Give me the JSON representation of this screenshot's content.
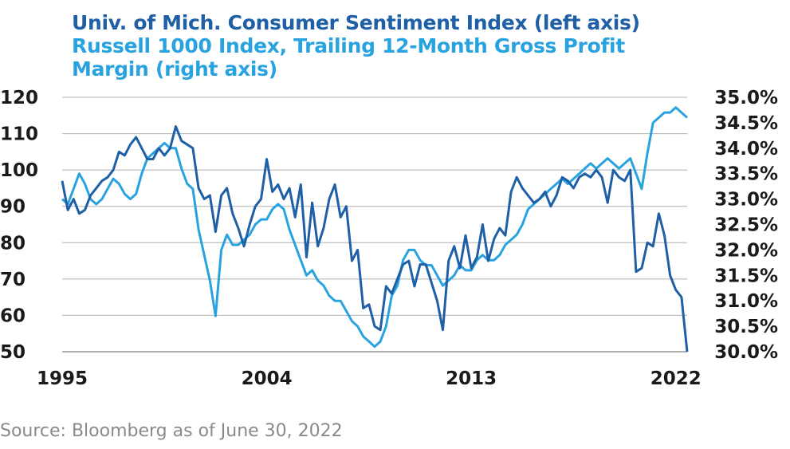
{
  "source": "Source: Bloomberg as of June 30, 2022",
  "chart_data": {
    "type": "line",
    "title_lines": [
      "Univ. of Mich. Consumer Sentiment Index (left axis)",
      "Russell 1000 Index, Trailing 12-Month Gross Profit Margin (right axis)"
    ],
    "xlim": [
      1995,
      2022.5
    ],
    "x_ticks": [
      "1995",
      "2004",
      "2013",
      "2022"
    ],
    "y_left": {
      "lim": [
        50,
        120
      ],
      "ticks": [
        "120",
        "110",
        "100",
        "90",
        "80",
        "70",
        "60",
        "50"
      ]
    },
    "y_right": {
      "lim": [
        30.0,
        35.0
      ],
      "ticks": [
        "35.0%",
        "34.5%",
        "34.0%",
        "33.5%",
        "33.0%",
        "32.5%",
        "32.0%",
        "31.5%",
        "31.0%",
        "30.5%",
        "30.0%"
      ]
    },
    "grid": "horizontal",
    "colors": {
      "sentiment": "#1f5fa6",
      "margin": "#29a3e0",
      "grid": "#b0b0b0"
    },
    "series": [
      {
        "name": "Univ. of Mich. Consumer Sentiment Index (left axis)",
        "axis": "left",
        "points": [
          [
            1995.0,
            97
          ],
          [
            1995.25,
            89
          ],
          [
            1995.5,
            92
          ],
          [
            1995.75,
            88
          ],
          [
            1996.0,
            89
          ],
          [
            1996.25,
            93
          ],
          [
            1996.5,
            95
          ],
          [
            1996.75,
            97
          ],
          [
            1997.0,
            98
          ],
          [
            1997.25,
            100
          ],
          [
            1997.5,
            105
          ],
          [
            1997.75,
            104
          ],
          [
            1998.0,
            107
          ],
          [
            1998.25,
            109
          ],
          [
            1998.5,
            106
          ],
          [
            1998.75,
            103
          ],
          [
            1999.0,
            103
          ],
          [
            1999.25,
            106
          ],
          [
            1999.5,
            104
          ],
          [
            1999.75,
            106
          ],
          [
            2000.0,
            112
          ],
          [
            2000.25,
            108
          ],
          [
            2000.5,
            107
          ],
          [
            2000.75,
            106
          ],
          [
            2001.0,
            95
          ],
          [
            2001.25,
            92
          ],
          [
            2001.5,
            93
          ],
          [
            2001.75,
            83
          ],
          [
            2002.0,
            93
          ],
          [
            2002.25,
            95
          ],
          [
            2002.5,
            88
          ],
          [
            2002.75,
            84
          ],
          [
            2003.0,
            79
          ],
          [
            2003.25,
            85
          ],
          [
            2003.5,
            90
          ],
          [
            2003.75,
            92
          ],
          [
            2004.0,
            103
          ],
          [
            2004.25,
            94
          ],
          [
            2004.5,
            96
          ],
          [
            2004.75,
            92
          ],
          [
            2005.0,
            95
          ],
          [
            2005.25,
            87
          ],
          [
            2005.5,
            96
          ],
          [
            2005.75,
            76
          ],
          [
            2006.0,
            91
          ],
          [
            2006.25,
            79
          ],
          [
            2006.5,
            84
          ],
          [
            2006.75,
            92
          ],
          [
            2007.0,
            96
          ],
          [
            2007.25,
            87
          ],
          [
            2007.5,
            90
          ],
          [
            2007.75,
            75
          ],
          [
            2008.0,
            78
          ],
          [
            2008.25,
            62
          ],
          [
            2008.5,
            63
          ],
          [
            2008.75,
            57
          ],
          [
            2009.0,
            56
          ],
          [
            2009.25,
            68
          ],
          [
            2009.5,
            66
          ],
          [
            2009.75,
            70
          ],
          [
            2010.0,
            74
          ],
          [
            2010.25,
            75
          ],
          [
            2010.5,
            68
          ],
          [
            2010.75,
            74
          ],
          [
            2011.0,
            74
          ],
          [
            2011.25,
            69
          ],
          [
            2011.5,
            64
          ],
          [
            2011.75,
            56
          ],
          [
            2012.0,
            75
          ],
          [
            2012.25,
            79
          ],
          [
            2012.5,
            73
          ],
          [
            2012.75,
            82
          ],
          [
            2013.0,
            73
          ],
          [
            2013.25,
            76
          ],
          [
            2013.5,
            85
          ],
          [
            2013.75,
            75
          ],
          [
            2014.0,
            81
          ],
          [
            2014.25,
            84
          ],
          [
            2014.5,
            82
          ],
          [
            2014.75,
            94
          ],
          [
            2015.0,
            98
          ],
          [
            2015.25,
            95
          ],
          [
            2015.5,
            93
          ],
          [
            2015.75,
            91
          ],
          [
            2016.0,
            92
          ],
          [
            2016.25,
            94
          ],
          [
            2016.5,
            90
          ],
          [
            2016.75,
            93
          ],
          [
            2017.0,
            98
          ],
          [
            2017.25,
            97
          ],
          [
            2017.5,
            95
          ],
          [
            2017.75,
            98
          ],
          [
            2018.0,
            99
          ],
          [
            2018.25,
            98
          ],
          [
            2018.5,
            100
          ],
          [
            2018.75,
            98
          ],
          [
            2019.0,
            91
          ],
          [
            2019.25,
            100
          ],
          [
            2019.5,
            98
          ],
          [
            2019.75,
            97
          ],
          [
            2020.0,
            100
          ],
          [
            2020.25,
            72
          ],
          [
            2020.5,
            73
          ],
          [
            2020.75,
            80
          ],
          [
            2021.0,
            79
          ],
          [
            2021.25,
            88
          ],
          [
            2021.5,
            82
          ],
          [
            2021.75,
            71
          ],
          [
            2022.0,
            67
          ],
          [
            2022.25,
            65
          ],
          [
            2022.5,
            50
          ]
        ]
      },
      {
        "name": "Russell 1000 Index, Trailing 12-Month Gross Profit Margin (right axis)",
        "axis": "right",
        "points": [
          [
            1995.0,
            33.0
          ],
          [
            1995.25,
            32.9
          ],
          [
            1995.5,
            33.2
          ],
          [
            1995.75,
            33.5
          ],
          [
            1996.0,
            33.3
          ],
          [
            1996.25,
            33.0
          ],
          [
            1996.5,
            32.9
          ],
          [
            1996.75,
            33.0
          ],
          [
            1997.0,
            33.2
          ],
          [
            1997.25,
            33.4
          ],
          [
            1997.5,
            33.3
          ],
          [
            1997.75,
            33.1
          ],
          [
            1998.0,
            33.0
          ],
          [
            1998.25,
            33.1
          ],
          [
            1998.5,
            33.5
          ],
          [
            1998.75,
            33.8
          ],
          [
            1999.0,
            33.9
          ],
          [
            1999.25,
            34.0
          ],
          [
            1999.5,
            34.1
          ],
          [
            1999.75,
            34.0
          ],
          [
            2000.0,
            34.0
          ],
          [
            2000.25,
            33.6
          ],
          [
            2000.5,
            33.3
          ],
          [
            2000.75,
            33.2
          ],
          [
            2001.0,
            32.4
          ],
          [
            2001.25,
            31.9
          ],
          [
            2001.5,
            31.4
          ],
          [
            2001.75,
            30.7
          ],
          [
            2002.0,
            32.0
          ],
          [
            2002.25,
            32.3
          ],
          [
            2002.5,
            32.1
          ],
          [
            2002.75,
            32.1
          ],
          [
            2003.0,
            32.2
          ],
          [
            2003.25,
            32.3
          ],
          [
            2003.5,
            32.5
          ],
          [
            2003.75,
            32.6
          ],
          [
            2004.0,
            32.6
          ],
          [
            2004.25,
            32.8
          ],
          [
            2004.5,
            32.9
          ],
          [
            2004.75,
            32.8
          ],
          [
            2005.0,
            32.4
          ],
          [
            2005.25,
            32.1
          ],
          [
            2005.5,
            31.8
          ],
          [
            2005.75,
            31.5
          ],
          [
            2006.0,
            31.6
          ],
          [
            2006.25,
            31.4
          ],
          [
            2006.5,
            31.3
          ],
          [
            2006.75,
            31.1
          ],
          [
            2007.0,
            31.0
          ],
          [
            2007.25,
            31.0
          ],
          [
            2007.5,
            30.8
          ],
          [
            2007.75,
            30.6
          ],
          [
            2008.0,
            30.5
          ],
          [
            2008.25,
            30.3
          ],
          [
            2008.5,
            30.2
          ],
          [
            2008.75,
            30.1
          ],
          [
            2009.0,
            30.2
          ],
          [
            2009.25,
            30.5
          ],
          [
            2009.5,
            31.1
          ],
          [
            2009.75,
            31.3
          ],
          [
            2010.0,
            31.8
          ],
          [
            2010.25,
            32.0
          ],
          [
            2010.5,
            32.0
          ],
          [
            2010.75,
            31.8
          ],
          [
            2011.0,
            31.7
          ],
          [
            2011.25,
            31.7
          ],
          [
            2011.5,
            31.5
          ],
          [
            2011.75,
            31.3
          ],
          [
            2012.0,
            31.4
          ],
          [
            2012.25,
            31.5
          ],
          [
            2012.5,
            31.7
          ],
          [
            2012.75,
            31.6
          ],
          [
            2013.0,
            31.6
          ],
          [
            2013.25,
            31.8
          ],
          [
            2013.5,
            31.9
          ],
          [
            2013.75,
            31.8
          ],
          [
            2014.0,
            31.8
          ],
          [
            2014.25,
            31.9
          ],
          [
            2014.5,
            32.1
          ],
          [
            2014.75,
            32.2
          ],
          [
            2015.0,
            32.3
          ],
          [
            2015.25,
            32.5
          ],
          [
            2015.5,
            32.8
          ],
          [
            2015.75,
            32.9
          ],
          [
            2016.0,
            33.0
          ],
          [
            2016.25,
            33.1
          ],
          [
            2016.5,
            33.2
          ],
          [
            2016.75,
            33.3
          ],
          [
            2017.0,
            33.4
          ],
          [
            2017.25,
            33.3
          ],
          [
            2017.5,
            33.4
          ],
          [
            2017.75,
            33.5
          ],
          [
            2018.0,
            33.6
          ],
          [
            2018.25,
            33.7
          ],
          [
            2018.5,
            33.6
          ],
          [
            2018.75,
            33.7
          ],
          [
            2019.0,
            33.8
          ],
          [
            2019.25,
            33.7
          ],
          [
            2019.5,
            33.6
          ],
          [
            2019.75,
            33.7
          ],
          [
            2020.0,
            33.8
          ],
          [
            2020.25,
            33.5
          ],
          [
            2020.5,
            33.2
          ],
          [
            2020.75,
            33.9
          ],
          [
            2021.0,
            34.5
          ],
          [
            2021.25,
            34.6
          ],
          [
            2021.5,
            34.7
          ],
          [
            2021.75,
            34.7
          ],
          [
            2022.0,
            34.8
          ],
          [
            2022.25,
            34.7
          ],
          [
            2022.5,
            34.6
          ]
        ]
      }
    ]
  }
}
